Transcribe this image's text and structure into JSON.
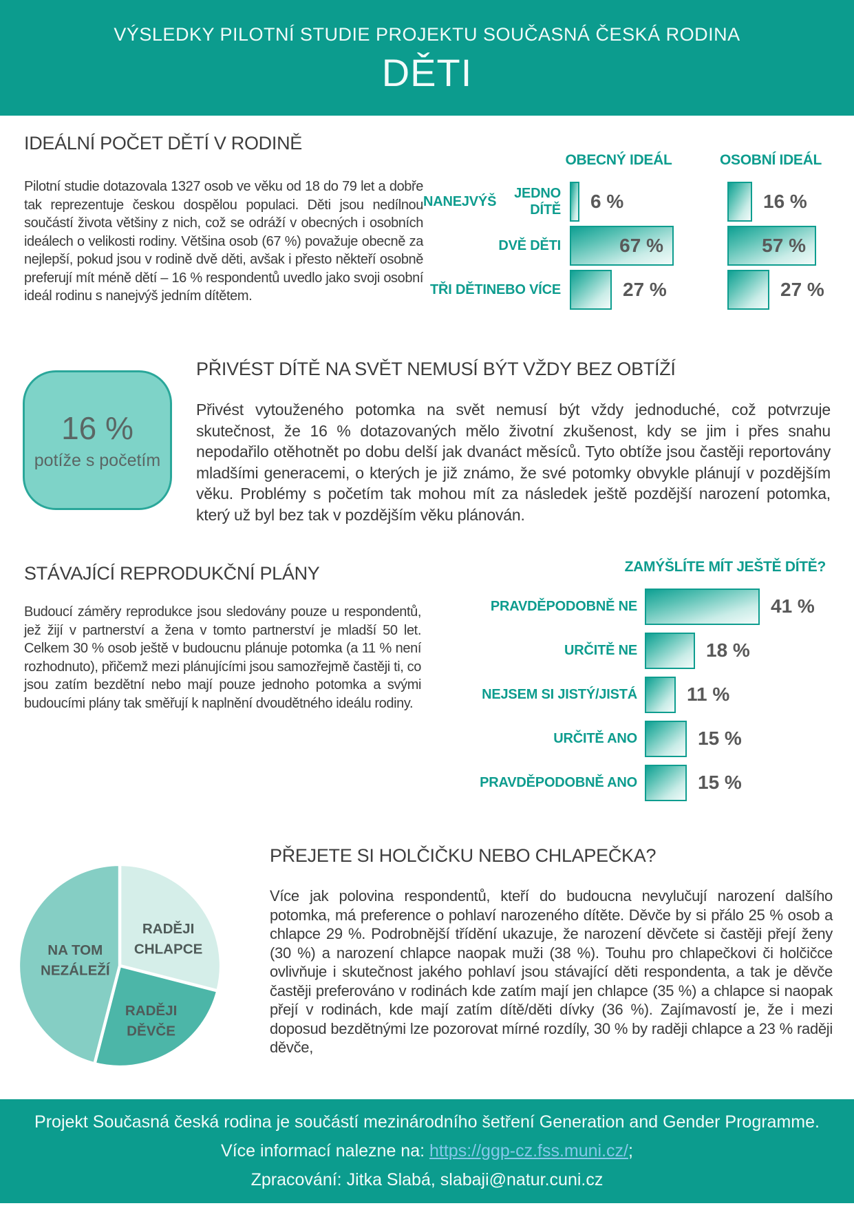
{
  "colors": {
    "teal": "#0C9C8E",
    "teal_text": "#0D9C8E",
    "heading_text": "#3D3D3D",
    "body_text": "#3A3A3A",
    "value_text": "#595959",
    "badge_fill": "#7ED3C8",
    "badge_border": "#2AA79A",
    "link": "#86C7EA"
  },
  "header": {
    "supertitle": "VÝSLEDKY PILOTNÍ STUDIE PROJEKTU SOUČASNÁ ČESKÁ RODINA",
    "title": "DĚTI"
  },
  "sections": {
    "ideal": {
      "heading": "IDEÁLNÍ POČET DĚTÍ V RODINĚ",
      "paragraph": "Pilotní studie dotazovala 1327 osob ve věku od 18 do 79 let a dobře tak reprezentuje českou dospělou populaci. Děti jsou nedílnou součástí života většiny z nich, což se odráží v obecných i osobních ideálech o velikosti rodiny. Většina osob (67 %) považuje obecně za nejlepší, pokud jsou v rodině dvě děti, avšak i přesto někteří osobně preferují mít méně dětí – 16 % respondentů uvedlo jako svoji osobní ideál rodinu s nanejvýš jedním dítětem."
    },
    "obtize": {
      "heading": "PŘIVÉST DÍTĚ NA SVĚT NEMUSÍ BÝT VŽDY BEZ OBTÍŽÍ",
      "badge_value": "16 %",
      "badge_label": "potíže s početím",
      "paragraph": "Přivést vytouženého potomka na svět nemusí být vždy jednoduché, což potvrzuje skutečnost, že 16 % dotazovaných mělo životní zkušenost, kdy se jim i přes snahu nepodařilo otěhotnět po dobu delší jak dvanáct měsíců. Tyto obtíže jsou častěji reportovány mladšími generacemi, o kterých je již známo, že své potomky obvykle plánují v pozdějším věku. Problémy s početím tak mohou mít za následek ještě pozdější narození potomka, který už byl bez tak v pozdějším věku plánován."
    },
    "plany": {
      "heading": "STÁVAJÍCÍ REPRODUKČNÍ PLÁNY",
      "paragraph": "Budoucí záměry reprodukce jsou sledovány pouze u respondentů, jež žijí v partnerství a žena v tomto partnerství je mladší 50 let. Celkem 30 % osob ještě v budoucnu plánuje potomka (a 11 % není rozhodnuto), přičemž mezi plánujícími jsou samozřejmě častěji ti, co jsou zatím bezdětní nebo mají pouze jednoho potomka a svými budoucími plány tak směřují k naplnění dvoudětného ideálu rodiny."
    },
    "pohlavi": {
      "heading": "PŘEJETE SI HOLČIČKU NEBO CHLAPEČKA?",
      "paragraph": "Více jak polovina respondentů, kteří do budoucna nevylučují narození dalšího potomka, má preference o pohlaví narozeného dítěte. Děvče by si přálo 25 % osob a chlapce 29 %. Podrobnější třídění ukazuje, že narození děvčete si častěji přejí ženy (30 %) a narození chlapce naopak muži (38 %). Touhu pro chlapečkovi či holčičce ovlivňuje i skutečnost jakého pohlaví jsou stávající děti respondenta, a tak je děvče častěji preferováno v rodinách kde zatím mají jen chlapce (35 %) a chlapce si naopak přejí v rodinách, kde mají zatím dítě/děti dívky (36 %). Zajímavostí je, že i mezi doposud bezdětnými lze pozorovat mírné rozdíly, 30 % by raději chlapce a 23 % raději děvče,"
    }
  },
  "chart_data": [
    {
      "id": "obecny_ideal",
      "type": "bar",
      "orientation": "horizontal",
      "title": "OBECNÝ IDEÁL",
      "categories": [
        "NANEJVÝŠ JEDNO DÍTĚ",
        "DVĚ DĚTI",
        "TŘI DĚTI NEBO VÍCE"
      ],
      "category_lines": [
        [
          "NANEJVÝŠ",
          "JEDNO DÍTĚ"
        ],
        [
          "DVĚ DĚTI"
        ],
        [
          "TŘI DĚTI",
          "NEBO VÍCE"
        ]
      ],
      "values": [
        6,
        67,
        27
      ],
      "value_labels": [
        "6 %",
        "67 %",
        "27 %"
      ],
      "value_inside": [
        false,
        true,
        false
      ],
      "unit": "%",
      "xlim": [
        0,
        100
      ],
      "grid": false
    },
    {
      "id": "osobni_ideal",
      "type": "bar",
      "orientation": "horizontal",
      "title": "OSOBNÍ IDEÁL",
      "categories": [
        "NANEJVÝŠ JEDNO DÍTĚ",
        "DVĚ DĚTI",
        "TŘI DĚTI NEBO VÍCE"
      ],
      "values": [
        16,
        57,
        27
      ],
      "value_labels": [
        "16 %",
        "57 %",
        "27 %"
      ],
      "value_inside": [
        false,
        true,
        false
      ],
      "unit": "%",
      "xlim": [
        0,
        100
      ],
      "grid": false
    },
    {
      "id": "zamyslite",
      "type": "bar",
      "orientation": "horizontal",
      "title": "ZAMÝŠLÍTE MÍT JEŠTĚ DÍTĚ?",
      "categories": [
        "PRAVDĚPODOBNĚ NE",
        "URČITĚ NE",
        "NEJSEM SI JISTÝ/JISTÁ",
        "URČITĚ ANO",
        "PRAVDĚPODOBNĚ ANO"
      ],
      "values": [
        41,
        18,
        11,
        15,
        15
      ],
      "value_labels": [
        "41 %",
        "18 %",
        "11 %",
        "15 %",
        "15 %"
      ],
      "value_inside": [
        false,
        false,
        false,
        false,
        false
      ],
      "unit": "%",
      "xlim": [
        0,
        100
      ],
      "grid": false
    },
    {
      "id": "pohlavi_pie",
      "type": "pie",
      "categories": [
        "RADĚJI CHLAPCE",
        "RADĚJI DĚVČE",
        "NA TOM NEZÁLEŽÍ"
      ],
      "category_lines": [
        [
          "RADĚJI",
          "CHLAPCE"
        ],
        [
          "RADĚJI",
          "DĚVČE"
        ],
        [
          "NA TOM",
          "NEZÁLEŽÍ"
        ]
      ],
      "values": [
        29,
        25,
        46
      ],
      "unit": "%",
      "colors": [
        "#D5EEE9",
        "#4CB6A8",
        "#85CEC4"
      ],
      "start_angle_deg": 0,
      "direction": "clockwise",
      "legend_position": "inside"
    }
  ],
  "footer": {
    "line1": "Projekt Současná česká rodina je součástí mezinárodního šetření Generation and Gender Programme.",
    "line2_prefix": "Více informací nalezne na: ",
    "line2_link": "https://ggp-cz.fss.muni.cz/",
    "line2_suffix": ";",
    "line3": "Zpracování: Jitka Slabá, slabaji@natur.cuni.cz"
  }
}
